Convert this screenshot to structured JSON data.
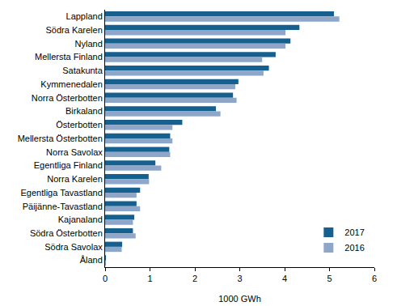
{
  "chart_data": {
    "type": "bar",
    "orientation": "horizontal",
    "x_label": "1000 GWh",
    "categories": [
      "Lappland",
      "Södra Karelen",
      "Nyland",
      "Mellersta Finland",
      "Satakunta",
      "Kymmenedalen",
      "Norra Österbotten",
      "Birkaland",
      "Österbotten",
      "Mellersta Österbotten",
      "Norra Savolax",
      "Egentliga Finland",
      "Norra Karelen",
      "Egentliga Tavastland",
      "Päijänne-Tavastland",
      "Kajanaland",
      "Södra Österbotten",
      "Södra Savolax",
      "Åland"
    ],
    "series": [
      {
        "name": "2017",
        "color": "#15608f",
        "values": [
          5.1,
          4.33,
          4.13,
          3.8,
          3.65,
          2.97,
          2.85,
          2.47,
          1.72,
          1.45,
          1.43,
          1.12,
          0.97,
          0.78,
          0.7,
          0.65,
          0.62,
          0.38,
          0.02
        ]
      },
      {
        "name": "2016",
        "color": "#8ea7c9",
        "values": [
          5.22,
          4.02,
          4.02,
          3.5,
          3.53,
          2.9,
          2.93,
          2.57,
          1.5,
          1.5,
          1.45,
          1.25,
          0.98,
          0.7,
          0.78,
          0.62,
          0.68,
          0.37,
          0.02
        ]
      }
    ],
    "xlim": [
      0,
      6
    ],
    "xticks": [
      0,
      1,
      2,
      3,
      4,
      5,
      6
    ],
    "grid": false,
    "legend": "lower right"
  }
}
